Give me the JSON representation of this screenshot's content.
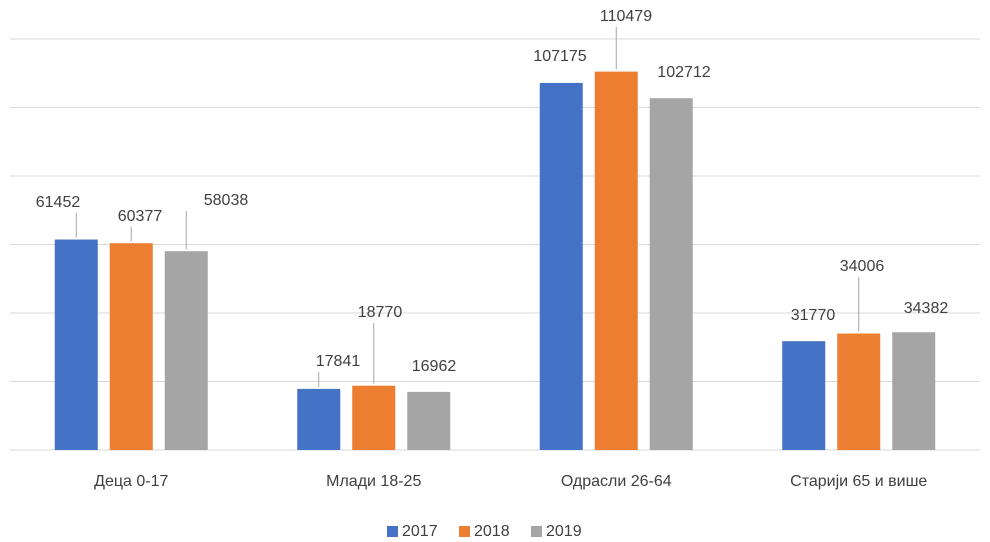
{
  "chart_data": {
    "type": "bar",
    "categories": [
      "Деца 0-17",
      "Млади 18-25",
      "Одрасли 26-64",
      "Старији 65 и више"
    ],
    "series": [
      {
        "name": "2017",
        "color": "#4472c4",
        "values": [
          61452,
          17841,
          107175,
          31770
        ]
      },
      {
        "name": "2018",
        "color": "#ed7d31",
        "values": [
          60377,
          18770,
          110479,
          34006
        ]
      },
      {
        "name": "2019",
        "color": "#a5a5a5",
        "values": [
          58038,
          16962,
          102712,
          34382
        ]
      }
    ],
    "ylim": [
      0,
      120000
    ],
    "yticks": [
      0,
      20000,
      40000,
      60000,
      80000,
      100000,
      120000
    ],
    "grid": true,
    "legend": "bottom"
  }
}
